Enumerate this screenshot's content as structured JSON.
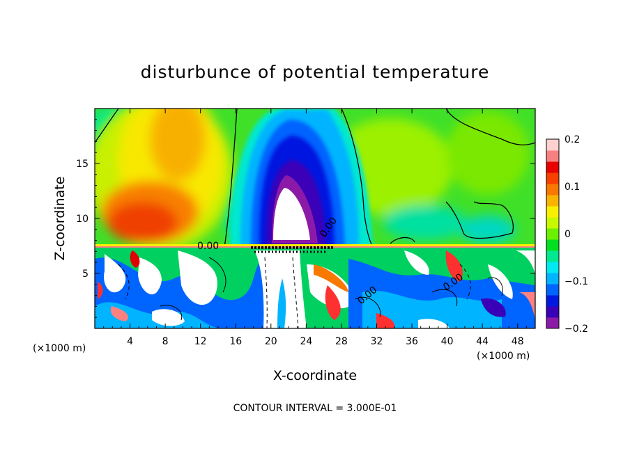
{
  "chart_data": {
    "type": "heatmap",
    "title": "disturbunce of potential temperature",
    "xlabel": "X-coordinate",
    "ylabel": "Z-coordinate",
    "x_unit": "(×1000 m)",
    "xlim": [
      0,
      50
    ],
    "ylim": [
      0,
      20
    ],
    "x_ticks": [
      4,
      8,
      12,
      16,
      20,
      24,
      28,
      32,
      36,
      40,
      44,
      48
    ],
    "x_tick_labels": [
      "4",
      "8",
      "12",
      "16",
      "20",
      "24",
      "28",
      "32",
      "36",
      "40",
      "44",
      "48"
    ],
    "y_ticks": [
      5,
      10,
      15
    ],
    "y_tick_labels": [
      "5",
      "10",
      "15"
    ],
    "colorbar": {
      "range": [
        -0.2,
        0.2
      ],
      "ticks": [
        0.2,
        0.1,
        0,
        -0.1,
        -0.2
      ],
      "tick_labels": [
        "0.2",
        "0.1",
        "0",
        "−0.1",
        "−0.2"
      ],
      "colors": [
        "#8c1aa8",
        "#3a00b8",
        "#0018e0",
        "#0064ff",
        "#00b4ff",
        "#00e8f0",
        "#00e890",
        "#00e020",
        "#6cf000",
        "#c8f800",
        "#f8f000",
        "#f8b400",
        "#f87800",
        "#f84000",
        "#e80000",
        "#f88080",
        "#ffd0d0"
      ]
    },
    "contour_labels": [
      "0.00",
      "0.00",
      "0.00",
      "0.00"
    ],
    "contour_interval_text": "CONTOUR INTERVAL = 3.000E-01",
    "fields": [
      {
        "name": "warm plume left",
        "x_center": 9,
        "z_center": 12,
        "value": 0.12
      },
      {
        "name": "cold dome center",
        "x_center": 21.5,
        "z_center": 11,
        "value": -0.2
      },
      {
        "name": "background upper layer",
        "value": 0.03
      },
      {
        "name": "turbulent lower layer",
        "z_top": 7.5,
        "value_range": [
          -0.2,
          0.2
        ]
      }
    ]
  }
}
